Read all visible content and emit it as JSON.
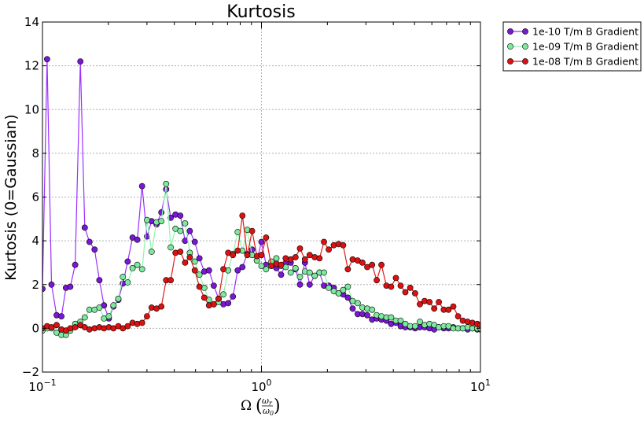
{
  "chart_data": {
    "type": "line",
    "title": "Kurtosis",
    "ylabel": "Kurtosis (0=Gaussian)",
    "xlabel": "Ω (ωr/ω0)",
    "xlabel_parts": {
      "symbol": "Ω",
      "num": "ω",
      "num_sub": "r",
      "den": "ω",
      "den_sub": "0"
    },
    "xscale": "log",
    "xlim": [
      0.1,
      10
    ],
    "ylim": [
      -2,
      14
    ],
    "yticks": [
      -2,
      0,
      2,
      4,
      6,
      8,
      10,
      12,
      14
    ],
    "ytick_labels": [
      "−2",
      "0",
      "2",
      "4",
      "6",
      "8",
      "10",
      "12",
      "14"
    ],
    "xticks": [
      0.1,
      1,
      10
    ],
    "xtick_labels": [
      {
        "base": "10",
        "exp": "−1"
      },
      {
        "base": "10",
        "exp": "0"
      },
      {
        "base": "10",
        "exp": "1"
      }
    ],
    "grid": true,
    "legend_position": "outside-top-right",
    "series": [
      {
        "name": "1e-10 T/m B Gradient",
        "color": "#7a17d6",
        "line_color": "#9b30ff",
        "x": [
          0.1,
          0.105,
          0.11,
          0.116,
          0.122,
          0.128,
          0.134,
          0.141,
          0.149,
          0.156,
          0.164,
          0.173,
          0.182,
          0.191,
          0.201,
          0.211,
          0.222,
          0.233,
          0.245,
          0.258,
          0.271,
          0.285,
          0.3,
          0.315,
          0.332,
          0.349,
          0.367,
          0.385,
          0.405,
          0.426,
          0.448,
          0.471,
          0.496,
          0.521,
          0.548,
          0.576,
          0.606,
          0.637,
          0.67,
          0.705,
          0.741,
          0.779,
          0.819,
          0.862,
          0.906,
          0.953,
          1.0,
          1.05,
          1.11,
          1.17,
          1.23,
          1.29,
          1.36,
          1.43,
          1.5,
          1.58,
          1.66,
          1.75,
          1.84,
          1.93,
          2.03,
          2.14,
          2.25,
          2.36,
          2.48,
          2.61,
          2.75,
          2.89,
          3.04,
          3.2,
          3.36,
          3.53,
          3.72,
          3.91,
          4.11,
          4.32,
          4.54,
          4.78,
          5.03,
          5.29,
          5.56,
          5.85,
          6.15,
          6.46,
          6.8,
          7.15,
          7.52,
          7.91,
          8.31,
          8.74,
          9.19,
          9.67,
          10.0
        ],
        "y": [
          1.8,
          12.3,
          2.0,
          0.6,
          0.55,
          1.85,
          1.9,
          2.9,
          12.2,
          4.6,
          3.95,
          3.6,
          2.2,
          1.05,
          0.45,
          1.0,
          1.3,
          2.05,
          3.05,
          4.15,
          4.05,
          6.5,
          4.2,
          4.9,
          4.75,
          5.3,
          6.35,
          5.05,
          5.2,
          5.15,
          4.0,
          4.45,
          3.95,
          3.2,
          2.6,
          2.65,
          1.95,
          1.35,
          1.1,
          1.15,
          1.45,
          2.65,
          2.8,
          3.4,
          3.6,
          3.1,
          3.95,
          2.9,
          2.9,
          2.75,
          2.45,
          2.95,
          3.0,
          2.7,
          2.0,
          3.0,
          2.0,
          2.4,
          2.55,
          1.95,
          1.95,
          1.85,
          1.6,
          1.55,
          1.4,
          0.9,
          0.65,
          0.65,
          0.6,
          0.4,
          0.45,
          0.4,
          0.35,
          0.2,
          0.25,
          0.1,
          0.05,
          0.05,
          0.0,
          0.05,
          0.05,
          0.0,
          -0.05,
          0.05,
          0.0,
          0.0,
          0.05,
          0.0,
          0.0,
          -0.05,
          0.0,
          -0.05,
          -0.05
        ]
      },
      {
        "name": "1e-09 T/m B Gradient",
        "color": "#7de89e",
        "line_color": "#8ef5ad",
        "x": [
          0.1,
          0.105,
          0.11,
          0.116,
          0.122,
          0.128,
          0.134,
          0.141,
          0.149,
          0.156,
          0.164,
          0.173,
          0.182,
          0.191,
          0.201,
          0.211,
          0.222,
          0.233,
          0.245,
          0.258,
          0.271,
          0.285,
          0.3,
          0.315,
          0.332,
          0.349,
          0.367,
          0.385,
          0.405,
          0.426,
          0.448,
          0.471,
          0.496,
          0.521,
          0.548,
          0.576,
          0.606,
          0.637,
          0.67,
          0.705,
          0.741,
          0.779,
          0.819,
          0.862,
          0.906,
          0.953,
          1.0,
          1.05,
          1.11,
          1.17,
          1.23,
          1.29,
          1.36,
          1.43,
          1.5,
          1.58,
          1.66,
          1.75,
          1.84,
          1.93,
          2.03,
          2.14,
          2.25,
          2.36,
          2.48,
          2.61,
          2.75,
          2.89,
          3.04,
          3.2,
          3.36,
          3.53,
          3.72,
          3.91,
          4.11,
          4.32,
          4.54,
          4.78,
          5.03,
          5.29,
          5.56,
          5.85,
          6.15,
          6.46,
          6.8,
          7.15,
          7.52,
          7.91,
          8.31,
          8.74,
          9.19,
          9.67,
          10.0
        ],
        "y": [
          -0.1,
          0.0,
          0.0,
          -0.2,
          -0.3,
          -0.3,
          -0.1,
          0.2,
          0.3,
          0.5,
          0.85,
          0.85,
          0.95,
          0.45,
          0.55,
          1.05,
          1.35,
          2.35,
          2.1,
          2.75,
          2.9,
          2.7,
          4.95,
          3.5,
          4.85,
          4.9,
          6.6,
          3.7,
          4.55,
          4.45,
          4.8,
          3.45,
          3.05,
          2.45,
          1.85,
          1.3,
          1.1,
          1.2,
          1.55,
          2.65,
          3.4,
          4.4,
          3.55,
          4.5,
          3.35,
          3.1,
          2.85,
          2.7,
          3.05,
          3.2,
          2.85,
          2.8,
          2.55,
          2.75,
          2.35,
          2.6,
          2.55,
          2.4,
          2.55,
          2.55,
          1.85,
          1.7,
          1.6,
          1.75,
          1.9,
          1.25,
          1.15,
          0.95,
          0.9,
          0.85,
          0.6,
          0.55,
          0.5,
          0.5,
          0.35,
          0.35,
          0.2,
          0.1,
          0.1,
          0.3,
          0.15,
          0.2,
          0.15,
          0.05,
          0.1,
          0.1,
          0.0,
          0.0,
          0.0,
          0.05,
          0.0,
          0.0,
          0.0
        ]
      },
      {
        "name": "1e-08 T/m B Gradient",
        "color": "#dd1111",
        "line_color": "#e31a1a",
        "x": [
          0.1,
          0.105,
          0.11,
          0.116,
          0.122,
          0.128,
          0.134,
          0.141,
          0.149,
          0.156,
          0.164,
          0.173,
          0.182,
          0.191,
          0.201,
          0.211,
          0.222,
          0.233,
          0.245,
          0.258,
          0.271,
          0.285,
          0.3,
          0.315,
          0.332,
          0.349,
          0.367,
          0.385,
          0.405,
          0.426,
          0.448,
          0.471,
          0.496,
          0.521,
          0.548,
          0.576,
          0.606,
          0.637,
          0.67,
          0.705,
          0.741,
          0.779,
          0.819,
          0.862,
          0.906,
          0.953,
          1.0,
          1.05,
          1.11,
          1.17,
          1.23,
          1.29,
          1.36,
          1.43,
          1.5,
          1.58,
          1.66,
          1.75,
          1.84,
          1.93,
          2.03,
          2.14,
          2.25,
          2.36,
          2.48,
          2.61,
          2.75,
          2.89,
          3.04,
          3.2,
          3.36,
          3.53,
          3.72,
          3.91,
          4.11,
          4.32,
          4.54,
          4.78,
          5.03,
          5.29,
          5.56,
          5.85,
          6.15,
          6.46,
          6.8,
          7.15,
          7.52,
          7.91,
          8.31,
          8.74,
          9.19,
          9.67,
          10.0
        ],
        "y": [
          0.0,
          0.1,
          0.05,
          0.15,
          -0.05,
          -0.1,
          0.0,
          0.05,
          0.15,
          0.05,
          -0.05,
          0.0,
          0.05,
          0.0,
          0.05,
          0.0,
          0.1,
          0.0,
          0.1,
          0.25,
          0.2,
          0.25,
          0.55,
          0.95,
          0.9,
          1.0,
          2.2,
          2.2,
          3.45,
          3.5,
          3.0,
          3.25,
          2.65,
          1.9,
          1.4,
          1.05,
          1.1,
          1.35,
          2.7,
          3.45,
          3.35,
          3.55,
          5.15,
          3.35,
          4.45,
          3.3,
          3.35,
          4.15,
          2.85,
          2.95,
          2.9,
          3.2,
          3.15,
          3.25,
          3.65,
          3.15,
          3.35,
          3.25,
          3.2,
          3.95,
          3.6,
          3.8,
          3.85,
          3.8,
          2.7,
          3.15,
          3.1,
          3.0,
          2.8,
          2.9,
          2.2,
          2.9,
          1.95,
          1.9,
          2.3,
          1.95,
          1.65,
          1.85,
          1.6,
          1.1,
          1.25,
          1.2,
          0.9,
          1.2,
          0.85,
          0.85,
          1.0,
          0.55,
          0.35,
          0.3,
          0.25,
          0.2,
          0.15
        ]
      }
    ]
  }
}
